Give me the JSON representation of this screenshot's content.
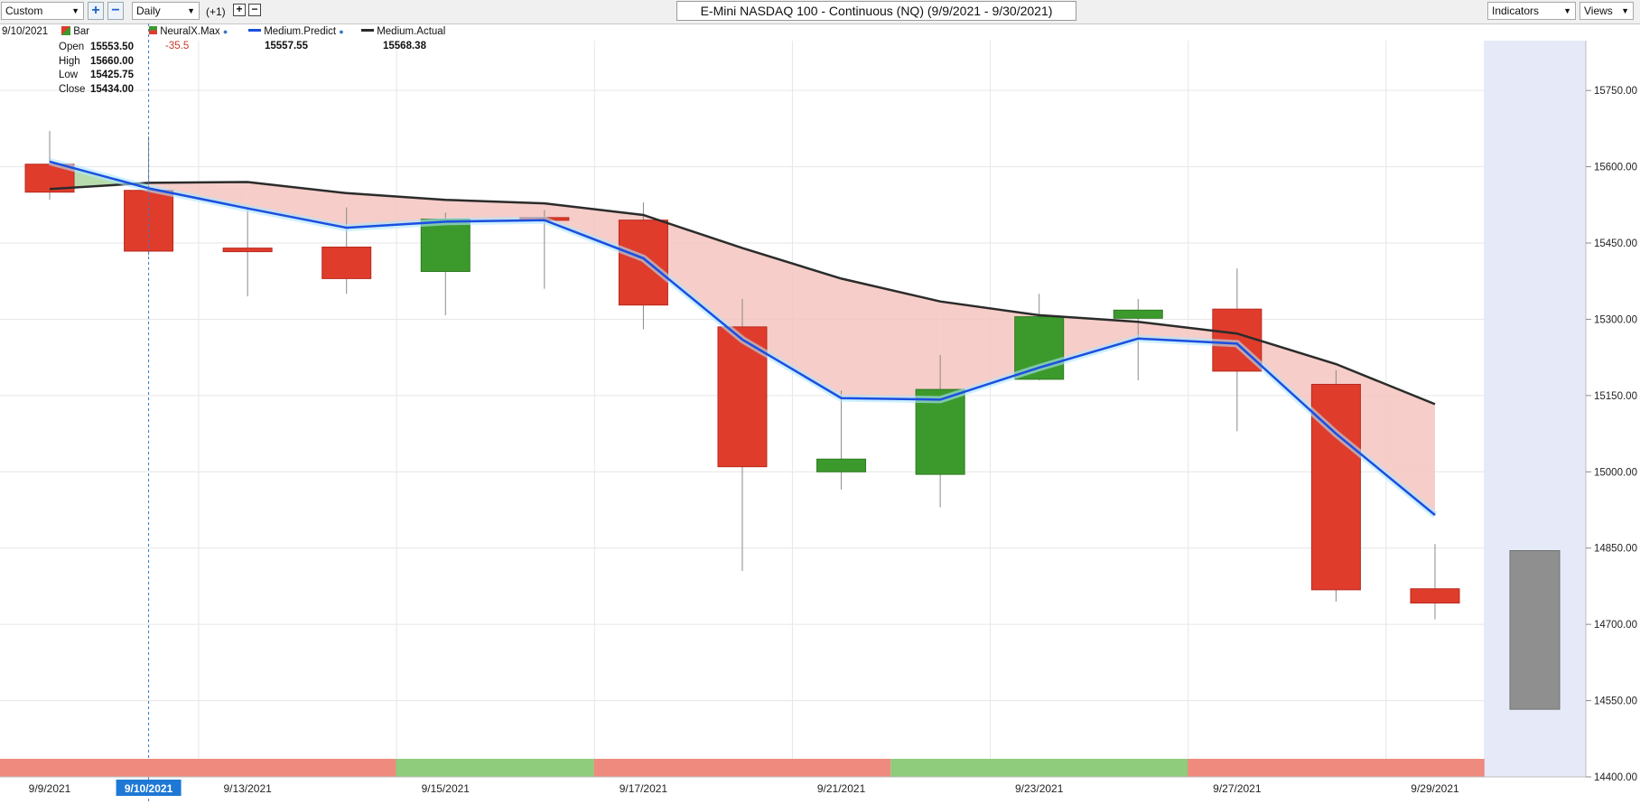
{
  "toolbar": {
    "mode_select": "Custom",
    "interval_select": "Daily",
    "offset_label": "(+1)",
    "zoom_in": "+",
    "zoom_out": "−",
    "title": "E-Mini NASDAQ 100 - Continuous (NQ) (9/9/2021 - 9/30/2021)",
    "indicators_label": "Indicators",
    "views_label": "Views"
  },
  "legend": {
    "date": "9/10/2021",
    "bar_label": "Bar",
    "open_label": "Open",
    "open_value": "15553.50",
    "high_label": "High",
    "high_value": "15660.00",
    "low_label": "Low",
    "low_value": "15425.75",
    "close_label": "Close",
    "close_value": "15434.00",
    "neural_label": "NeuralX.Max",
    "neural_value": "-35.5",
    "predict_label": "Medium.Predict",
    "predict_value": "15557.55",
    "actual_label": "Medium.Actual",
    "actual_value": "15568.38"
  },
  "colors": {
    "up": "#3c9a2c",
    "down": "#e03c2c",
    "predict": "#1a4fe0",
    "actual": "#2b2b2b",
    "band_below": "#f5c4be",
    "band_above": "#a9d6a0",
    "forecast_bg": "#e6eaf8",
    "forecast_bar": "#8f8f8f",
    "strip_red": "#ef8a7e",
    "strip_green": "#8fcc7c"
  },
  "chart_data": {
    "type": "candlestick",
    "title": "E-Mini NASDAQ 100 - Continuous (NQ) (9/9/2021 - 9/30/2021)",
    "ylim": [
      14400,
      15800
    ],
    "yticks": [
      "15750.00",
      "15600.00",
      "15450.00",
      "15300.00",
      "15150.00",
      "15000.00",
      "14850.00",
      "14700.00",
      "14550.00",
      "14400.00"
    ],
    "xtick_labels": [
      "9/9/2021",
      "9/10/2021",
      "9/13/2021",
      "9/15/2021",
      "9/17/2021",
      "9/21/2021",
      "9/23/2021",
      "9/27/2021",
      "9/29/2021"
    ],
    "xtick_index": [
      0,
      1,
      2,
      4,
      6,
      8,
      10,
      12,
      14
    ],
    "highlighted_date": "9/10/2021",
    "dates": [
      "9/9/2021",
      "9/10/2021",
      "9/13/2021",
      "9/14/2021",
      "9/15/2021",
      "9/16/2021",
      "9/17/2021",
      "9/20/2021",
      "9/21/2021",
      "9/22/2021",
      "9/23/2021",
      "9/24/2021",
      "9/27/2021",
      "9/28/2021",
      "9/29/2021"
    ],
    "open": [
      15605,
      15553.5,
      15440,
      15442,
      15394,
      15500,
      15495,
      15285,
      15000,
      14995,
      15182,
      15302,
      15320,
      15172,
      14770
    ],
    "high": [
      15670,
      15660,
      15520,
      15520,
      15510,
      15515,
      15530,
      15340,
      15160,
      15230,
      15350,
      15340,
      15400,
      15200,
      14858
    ],
    "low": [
      15535,
      15425.75,
      15345,
      15350,
      15308,
      15360,
      15280,
      14805,
      14965,
      14930,
      15180,
      15180,
      15080,
      14745,
      14710
    ],
    "close": [
      15550,
      15434,
      15433,
      15380,
      15497,
      15495,
      15328,
      15010,
      15025,
      15162,
      15305,
      15318,
      15198,
      14768,
      14742
    ],
    "medium_predict": [
      15610,
      15557.55,
      15518,
      15480,
      15492,
      15495,
      15420,
      15260,
      15145,
      15142,
      15205,
      15262,
      15252,
      15075,
      14915
    ],
    "medium_actual": [
      15556,
      15568.38,
      15570,
      15548,
      15535,
      15528,
      15505,
      15440,
      15380,
      15335,
      15308,
      15295,
      15272,
      15212,
      15133
    ],
    "forecast": {
      "date": "9/30/2021",
      "top": 14845,
      "bottom": 14533
    },
    "signal_strip": [
      {
        "from": 0,
        "to": 3.5,
        "signal": "red"
      },
      {
        "from": 3.5,
        "to": 5.5,
        "signal": "green"
      },
      {
        "from": 5.5,
        "to": 8.5,
        "signal": "red"
      },
      {
        "from": 8.5,
        "to": 11.5,
        "signal": "green"
      },
      {
        "from": 11.5,
        "to": 14.5,
        "signal": "red"
      }
    ]
  }
}
